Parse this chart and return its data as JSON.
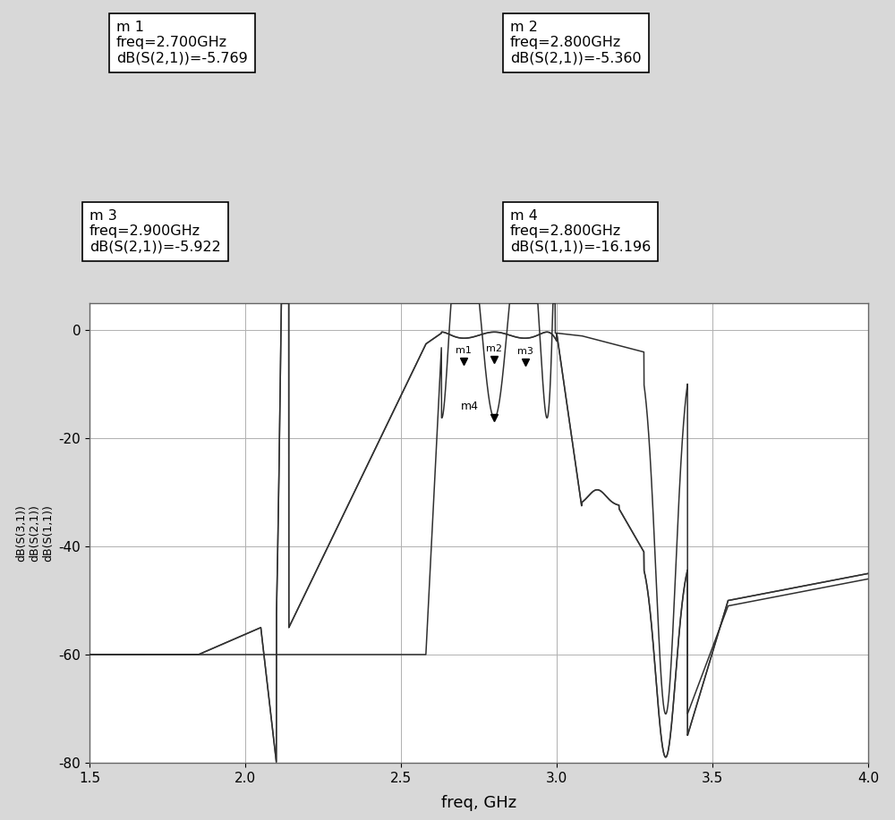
{
  "xlim": [
    1.5,
    4.0
  ],
  "ylim": [
    -80,
    5
  ],
  "xlabel": "freq, GHz",
  "ylabel": "dB(S(3,1))\ndB(S(2,1))\ndB(S(1,1))",
  "bg_color": "#d8d8d8",
  "plot_bg_color": "#ffffff",
  "grid_color": "#b0b0b0",
  "line_color": "#303030",
  "yticks": [
    0,
    -20,
    -40,
    -60,
    -80
  ],
  "xticks": [
    1.5,
    2.0,
    2.5,
    3.0,
    3.5,
    4.0
  ],
  "box_texts": [
    "m 1\nfreq=2.700GHz\ndB(S(2,1))=-5.769",
    "m 2\nfreq=2.800GHz\ndB(S(2,1))=-5.360",
    "m 3\nfreq=2.900GHz\ndB(S(2,1))=-5.922",
    "m 4\nfreq=2.800GHz\ndB(S(1,1))=-16.196"
  ],
  "m1": {
    "freq": 2.7,
    "val": -5.769
  },
  "m2": {
    "freq": 2.8,
    "val": -5.36
  },
  "m3": {
    "freq": 2.9,
    "val": -5.922
  },
  "m4": {
    "freq": 2.8,
    "val": -16.196
  }
}
